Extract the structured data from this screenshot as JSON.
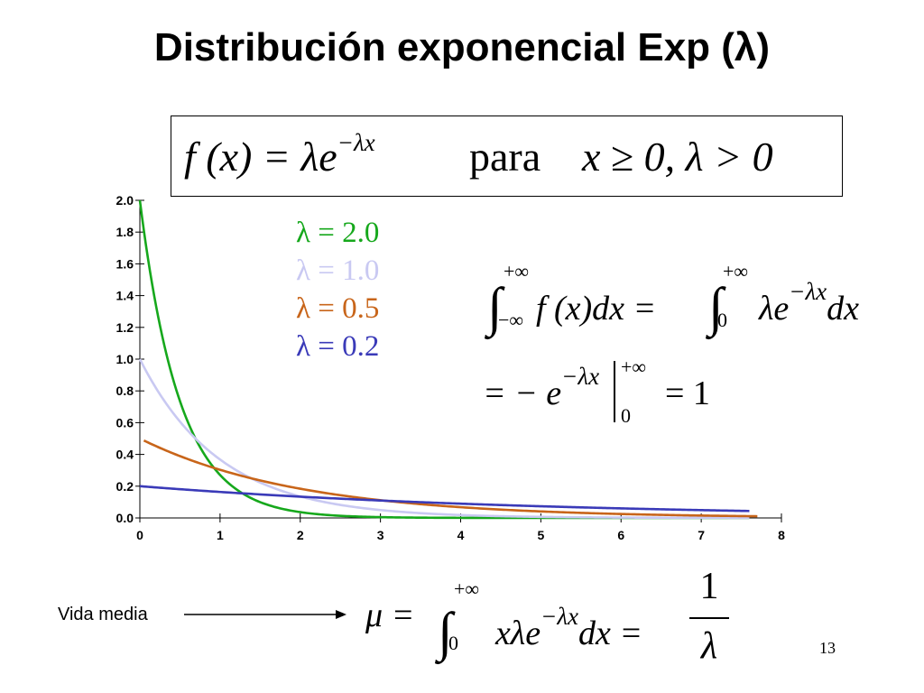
{
  "slide": {
    "title": "Distribución exponencial Exp (λ)",
    "pdf_formula": {
      "lhs": "f (x) = λe",
      "exponent": "−λx",
      "word": "para",
      "condition": "x ≥ 0,  λ > 0"
    },
    "integral_formula": {
      "line1_a": "f (x)dx = ",
      "line1_b": "λe",
      "line1_exp": "−λx",
      "line1_c": "dx",
      "lim_upper": "+∞",
      "lim_lower_1": "−∞",
      "lim_lower_2": "0",
      "line2_a": "= − e",
      "line2_exp": "−λx",
      "line2_upper": "+∞",
      "line2_lower": "0",
      "line2_b": "= 1"
    },
    "mean_formula": {
      "lhs": "μ = ",
      "lim_upper": "+∞",
      "lim_lower": "0",
      "body": "xλe",
      "exp": "−λx",
      "tail": "dx = ",
      "numerator": "1",
      "denominator": "λ"
    },
    "vida_media_label": "Vida media",
    "page_number": "13"
  },
  "chart_data": {
    "type": "line",
    "x_ticks": [
      "0",
      "1",
      "2",
      "3",
      "4",
      "5",
      "6",
      "7",
      "8"
    ],
    "y_ticks": [
      "0.0",
      "0.2",
      "0.4",
      "0.6",
      "0.8",
      "1.0",
      "1.2",
      "1.4",
      "1.6",
      "1.8",
      "2.0"
    ],
    "xlim": [
      0,
      8
    ],
    "ylim": [
      0,
      2.0
    ],
    "grid": false,
    "legend_position": "top-center",
    "series": [
      {
        "name": "λ = 2.0",
        "lambda": 2.0,
        "color": "#16a81c",
        "x_range": [
          0,
          7.6
        ]
      },
      {
        "name": "λ = 1.0",
        "lambda": 1.0,
        "color": "#c9c9f2",
        "x_range": [
          0,
          7.6
        ]
      },
      {
        "name": "λ = 0.5",
        "lambda": 0.5,
        "color": "#c8651a",
        "x_range": [
          0.05,
          7.7
        ]
      },
      {
        "name": "λ = 0.2",
        "lambda": 0.2,
        "color": "#3a3ab8",
        "x_range": [
          0,
          7.6
        ]
      }
    ]
  }
}
